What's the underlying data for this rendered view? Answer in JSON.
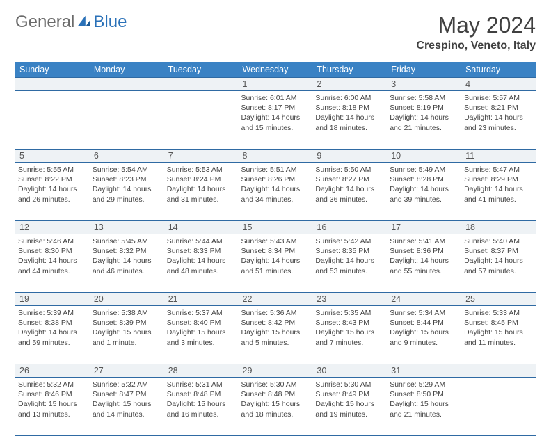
{
  "brand": {
    "part1": "General",
    "part2": "Blue"
  },
  "title": "May 2024",
  "location": "Crespino, Veneto, Italy",
  "colors": {
    "header_bg": "#3a82c4",
    "daynum_bg": "#eef2f5",
    "rule": "#2f6aa3",
    "text": "#404040"
  },
  "dow": [
    "Sunday",
    "Monday",
    "Tuesday",
    "Wednesday",
    "Thursday",
    "Friday",
    "Saturday"
  ],
  "weeks": [
    [
      {
        "n": "",
        "sr": "",
        "ss": "",
        "dl": ""
      },
      {
        "n": "",
        "sr": "",
        "ss": "",
        "dl": ""
      },
      {
        "n": "",
        "sr": "",
        "ss": "",
        "dl": ""
      },
      {
        "n": "1",
        "sr": "6:01 AM",
        "ss": "8:17 PM",
        "dl": "14 hours and 15 minutes."
      },
      {
        "n": "2",
        "sr": "6:00 AM",
        "ss": "8:18 PM",
        "dl": "14 hours and 18 minutes."
      },
      {
        "n": "3",
        "sr": "5:58 AM",
        "ss": "8:19 PM",
        "dl": "14 hours and 21 minutes."
      },
      {
        "n": "4",
        "sr": "5:57 AM",
        "ss": "8:21 PM",
        "dl": "14 hours and 23 minutes."
      }
    ],
    [
      {
        "n": "5",
        "sr": "5:55 AM",
        "ss": "8:22 PM",
        "dl": "14 hours and 26 minutes."
      },
      {
        "n": "6",
        "sr": "5:54 AM",
        "ss": "8:23 PM",
        "dl": "14 hours and 29 minutes."
      },
      {
        "n": "7",
        "sr": "5:53 AM",
        "ss": "8:24 PM",
        "dl": "14 hours and 31 minutes."
      },
      {
        "n": "8",
        "sr": "5:51 AM",
        "ss": "8:26 PM",
        "dl": "14 hours and 34 minutes."
      },
      {
        "n": "9",
        "sr": "5:50 AM",
        "ss": "8:27 PM",
        "dl": "14 hours and 36 minutes."
      },
      {
        "n": "10",
        "sr": "5:49 AM",
        "ss": "8:28 PM",
        "dl": "14 hours and 39 minutes."
      },
      {
        "n": "11",
        "sr": "5:47 AM",
        "ss": "8:29 PM",
        "dl": "14 hours and 41 minutes."
      }
    ],
    [
      {
        "n": "12",
        "sr": "5:46 AM",
        "ss": "8:30 PM",
        "dl": "14 hours and 44 minutes."
      },
      {
        "n": "13",
        "sr": "5:45 AM",
        "ss": "8:32 PM",
        "dl": "14 hours and 46 minutes."
      },
      {
        "n": "14",
        "sr": "5:44 AM",
        "ss": "8:33 PM",
        "dl": "14 hours and 48 minutes."
      },
      {
        "n": "15",
        "sr": "5:43 AM",
        "ss": "8:34 PM",
        "dl": "14 hours and 51 minutes."
      },
      {
        "n": "16",
        "sr": "5:42 AM",
        "ss": "8:35 PM",
        "dl": "14 hours and 53 minutes."
      },
      {
        "n": "17",
        "sr": "5:41 AM",
        "ss": "8:36 PM",
        "dl": "14 hours and 55 minutes."
      },
      {
        "n": "18",
        "sr": "5:40 AM",
        "ss": "8:37 PM",
        "dl": "14 hours and 57 minutes."
      }
    ],
    [
      {
        "n": "19",
        "sr": "5:39 AM",
        "ss": "8:38 PM",
        "dl": "14 hours and 59 minutes."
      },
      {
        "n": "20",
        "sr": "5:38 AM",
        "ss": "8:39 PM",
        "dl": "15 hours and 1 minute."
      },
      {
        "n": "21",
        "sr": "5:37 AM",
        "ss": "8:40 PM",
        "dl": "15 hours and 3 minutes."
      },
      {
        "n": "22",
        "sr": "5:36 AM",
        "ss": "8:42 PM",
        "dl": "15 hours and 5 minutes."
      },
      {
        "n": "23",
        "sr": "5:35 AM",
        "ss": "8:43 PM",
        "dl": "15 hours and 7 minutes."
      },
      {
        "n": "24",
        "sr": "5:34 AM",
        "ss": "8:44 PM",
        "dl": "15 hours and 9 minutes."
      },
      {
        "n": "25",
        "sr": "5:33 AM",
        "ss": "8:45 PM",
        "dl": "15 hours and 11 minutes."
      }
    ],
    [
      {
        "n": "26",
        "sr": "5:32 AM",
        "ss": "8:46 PM",
        "dl": "15 hours and 13 minutes."
      },
      {
        "n": "27",
        "sr": "5:32 AM",
        "ss": "8:47 PM",
        "dl": "15 hours and 14 minutes."
      },
      {
        "n": "28",
        "sr": "5:31 AM",
        "ss": "8:48 PM",
        "dl": "15 hours and 16 minutes."
      },
      {
        "n": "29",
        "sr": "5:30 AM",
        "ss": "8:48 PM",
        "dl": "15 hours and 18 minutes."
      },
      {
        "n": "30",
        "sr": "5:30 AM",
        "ss": "8:49 PM",
        "dl": "15 hours and 19 minutes."
      },
      {
        "n": "31",
        "sr": "5:29 AM",
        "ss": "8:50 PM",
        "dl": "15 hours and 21 minutes."
      },
      {
        "n": "",
        "sr": "",
        "ss": "",
        "dl": ""
      }
    ]
  ]
}
